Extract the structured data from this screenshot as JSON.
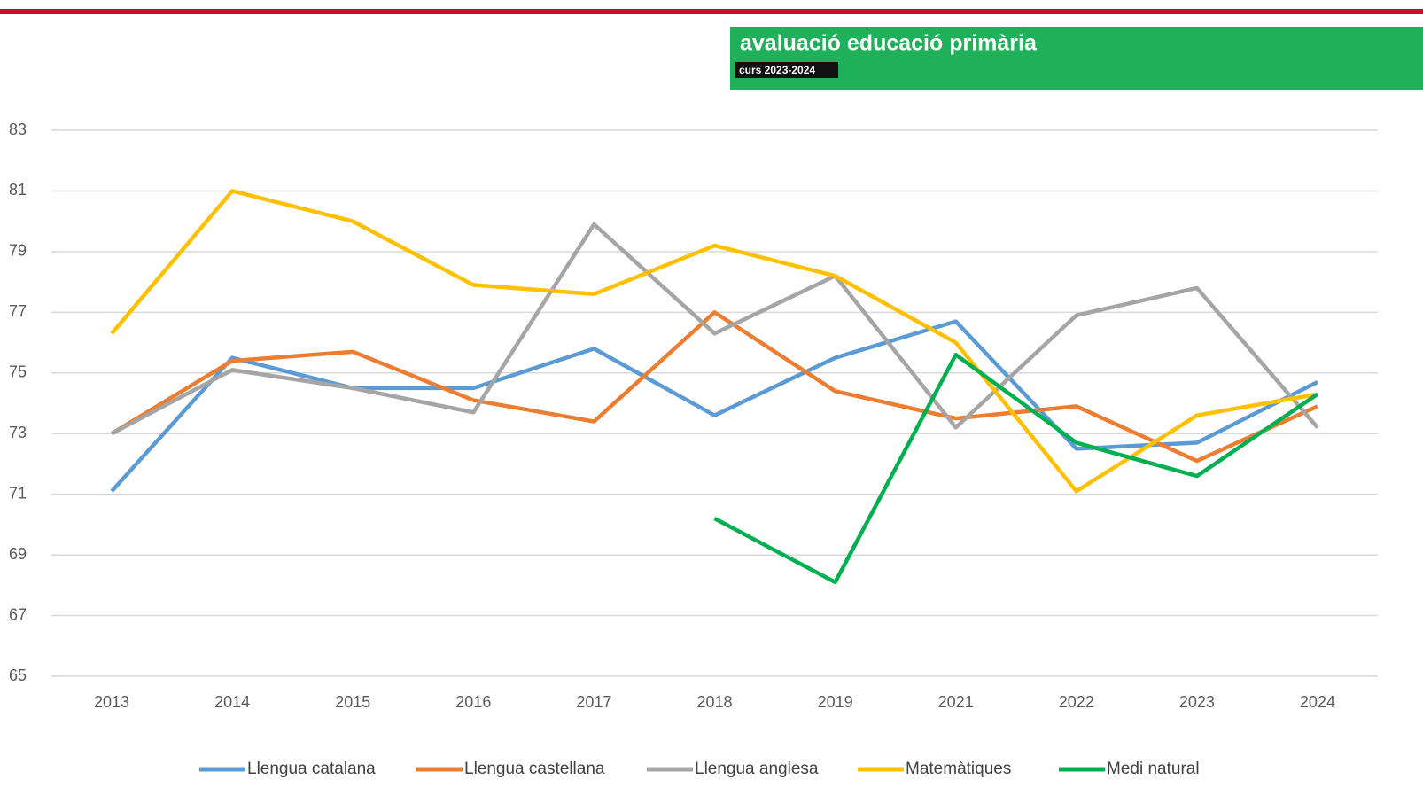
{
  "header": {
    "title": "avaluació educació primària",
    "subtitle": "curs 2023-2024"
  },
  "chart_data": {
    "type": "line",
    "categories": [
      "2013",
      "2014",
      "2015",
      "2016",
      "2017",
      "2018",
      "2019",
      "2021",
      "2022",
      "2023",
      "2024"
    ],
    "series": [
      {
        "name": "Llengua catalana",
        "color": "#5b9bd5",
        "values": [
          71.1,
          75.5,
          74.5,
          74.5,
          75.8,
          73.6,
          75.5,
          76.7,
          72.5,
          72.7,
          74.7
        ]
      },
      {
        "name": "Llengua castellana",
        "color": "#ed7d31",
        "values": [
          73.0,
          75.4,
          75.7,
          74.1,
          73.4,
          77.0,
          74.4,
          73.5,
          73.9,
          72.1,
          73.9
        ]
      },
      {
        "name": "Llengua anglesa",
        "color": "#a5a5a5",
        "values": [
          73.0,
          75.1,
          74.5,
          73.7,
          79.9,
          76.3,
          78.2,
          73.2,
          76.9,
          77.8,
          73.2
        ]
      },
      {
        "name": "Matemàtiques",
        "color": "#ffc000",
        "values": [
          76.3,
          81.0,
          80.0,
          77.9,
          77.6,
          79.2,
          78.2,
          76.0,
          71.1,
          73.6,
          74.3
        ]
      },
      {
        "name": "Medi natural",
        "color": "#00b050",
        "values": [
          null,
          null,
          null,
          null,
          null,
          70.2,
          68.1,
          75.6,
          72.7,
          71.6,
          74.3
        ]
      }
    ],
    "ylim": [
      65,
      83
    ],
    "yticks": [
      65,
      67,
      69,
      71,
      73,
      75,
      77,
      79,
      81,
      83
    ],
    "grid": true,
    "legend": "bottom"
  }
}
